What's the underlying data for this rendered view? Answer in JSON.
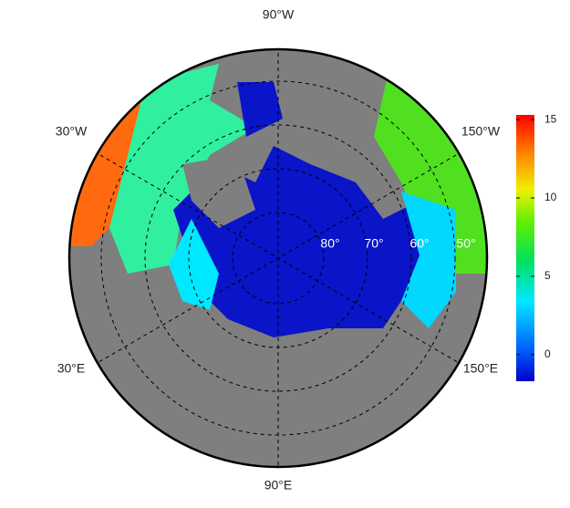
{
  "map": {
    "meridian_labels": [
      "90°W",
      "30°W",
      "150°W",
      "30°E",
      "150°E",
      "90°E"
    ],
    "parallel_labels": [
      "80°",
      "70°",
      "60°",
      "50°"
    ]
  },
  "colorbar": {
    "lim": [
      -1.7,
      15.3
    ],
    "ticks": [
      0,
      5,
      10,
      15
    ]
  }
}
